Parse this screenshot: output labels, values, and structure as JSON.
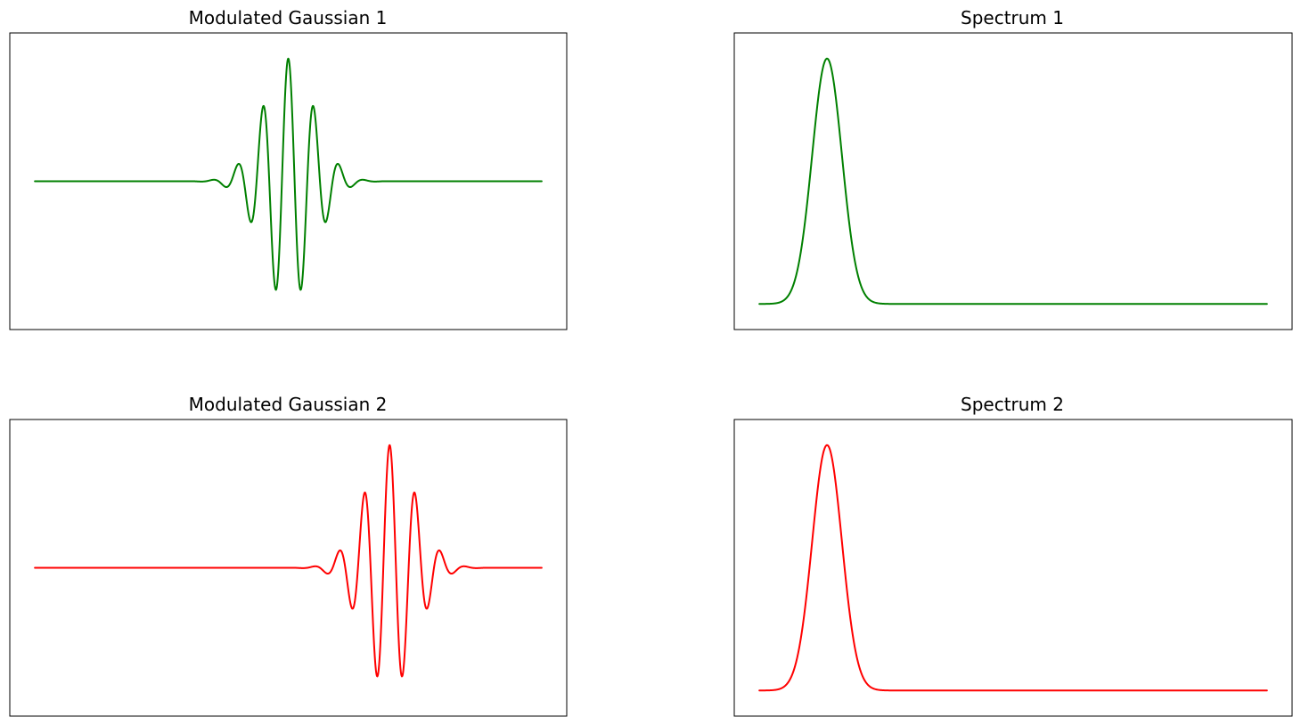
{
  "chart_data": [
    {
      "type": "line",
      "title": "Modulated Gaussian 1",
      "signal": "modulated-gaussian",
      "xlim": [
        -1,
        1
      ],
      "ylim": [
        -1.1,
        1.1
      ],
      "center": 0.0,
      "width": 0.1,
      "carrier_frequency": 10,
      "color": "#008000",
      "xticks": [],
      "yticks": []
    },
    {
      "type": "line",
      "title": "Spectrum 1",
      "signal": "spectrum",
      "xlim": [
        0,
        75
      ],
      "ylim": [
        -0.05,
        1.05
      ],
      "peak_frequency": 10,
      "width": 2.2,
      "color": "#008000",
      "xticks": [],
      "yticks": []
    },
    {
      "type": "line",
      "title": "Modulated Gaussian 2",
      "signal": "modulated-gaussian",
      "xlim": [
        -1,
        1
      ],
      "ylim": [
        -1.1,
        1.1
      ],
      "center": 0.4,
      "width": 0.1,
      "carrier_frequency": 10,
      "color": "#ff0000",
      "xticks": [],
      "yticks": []
    },
    {
      "type": "line",
      "title": "Spectrum 2",
      "signal": "spectrum",
      "xlim": [
        0,
        75
      ],
      "ylim": [
        -0.05,
        1.05
      ],
      "peak_frequency": 10,
      "width": 2.2,
      "color": "#ff0000",
      "xticks": [],
      "yticks": []
    }
  ]
}
